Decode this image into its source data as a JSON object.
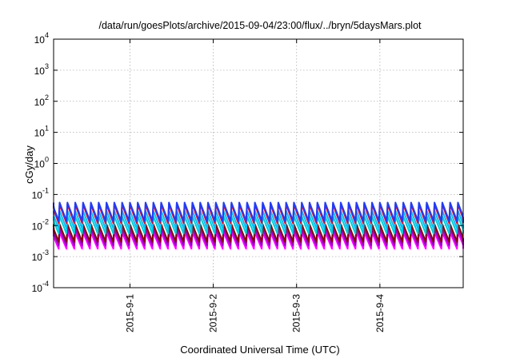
{
  "chart_data": {
    "type": "line",
    "title": "/data/run/goesPlots/archive/2015-09-04/23:00/flux/../bryn/5daysMars.plot",
    "xlabel": "Coordinated Universal Time (UTC)",
    "ylabel": "cGy/day",
    "y_scale": "log",
    "ylim": [
      0.0001,
      10000
    ],
    "y_ticks": [
      {
        "base": "10",
        "exp": "-4"
      },
      {
        "base": "10",
        "exp": "-3"
      },
      {
        "base": "10",
        "exp": "-2"
      },
      {
        "base": "10",
        "exp": "-1"
      },
      {
        "base": "10",
        "exp": "0"
      },
      {
        "base": "10",
        "exp": "1"
      },
      {
        "base": "10",
        "exp": "2"
      },
      {
        "base": "10",
        "exp": "3"
      },
      {
        "base": "10",
        "exp": "4"
      }
    ],
    "xlim": [
      "2015-08-31 02:00",
      "2015-09-05 00:00"
    ],
    "x_ticks": [
      "2015-9-1",
      "2015-9-2",
      "2015-9-3",
      "2015-9-4"
    ],
    "grid": true,
    "periodic_pattern": {
      "period_hours": 2.25,
      "note": "sawtooth: sharp rise then decay, repeated across the range"
    },
    "series": [
      {
        "color": "#ff00ff",
        "peak": 0.006,
        "trough": 0.0018
      },
      {
        "color": "#9400d3",
        "peak": 0.008,
        "trough": 0.0023
      },
      {
        "color": "#8b0000",
        "peak": 0.011,
        "trough": 0.003
      },
      {
        "color": "#00ced1",
        "peak": 0.02,
        "trough": 0.0055
      },
      {
        "color": "#00bfff",
        "peak": 0.03,
        "trough": 0.008
      },
      {
        "color": "#ff0000",
        "peak": 0.048,
        "trough": 0.012
      },
      {
        "color": "#1e3cff",
        "peak": 0.055,
        "trough": 0.014
      }
    ]
  }
}
